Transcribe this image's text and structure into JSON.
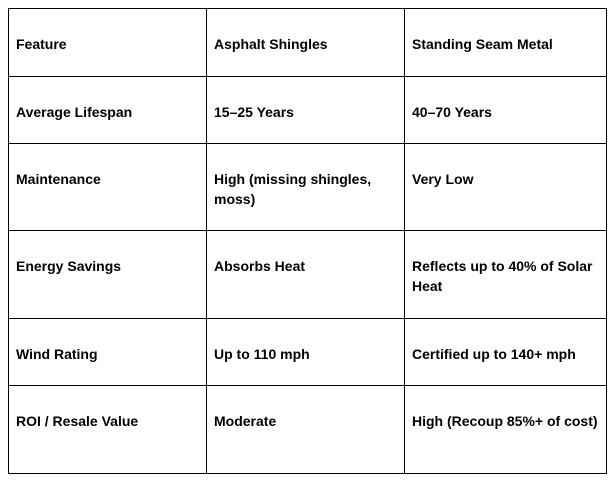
{
  "table": {
    "rows": [
      [
        "Feature",
        "Asphalt Shingles",
        "Standing Seam Metal"
      ],
      [
        "Average Lifespan",
        "15–25 Years",
        "40–70 Years"
      ],
      [
        "Maintenance",
        "High (missing shingles, moss)",
        "Very Low"
      ],
      [
        "Energy Savings",
        "Absorbs Heat",
        "Reflects up to 40% of Solar Heat"
      ],
      [
        "Wind Rating",
        "Up to 110 mph",
        "Certified up to 140+ mph"
      ],
      [
        "ROI / Resale Value",
        "Moderate",
        "High (Recoup 85%+ of cost)"
      ]
    ]
  }
}
